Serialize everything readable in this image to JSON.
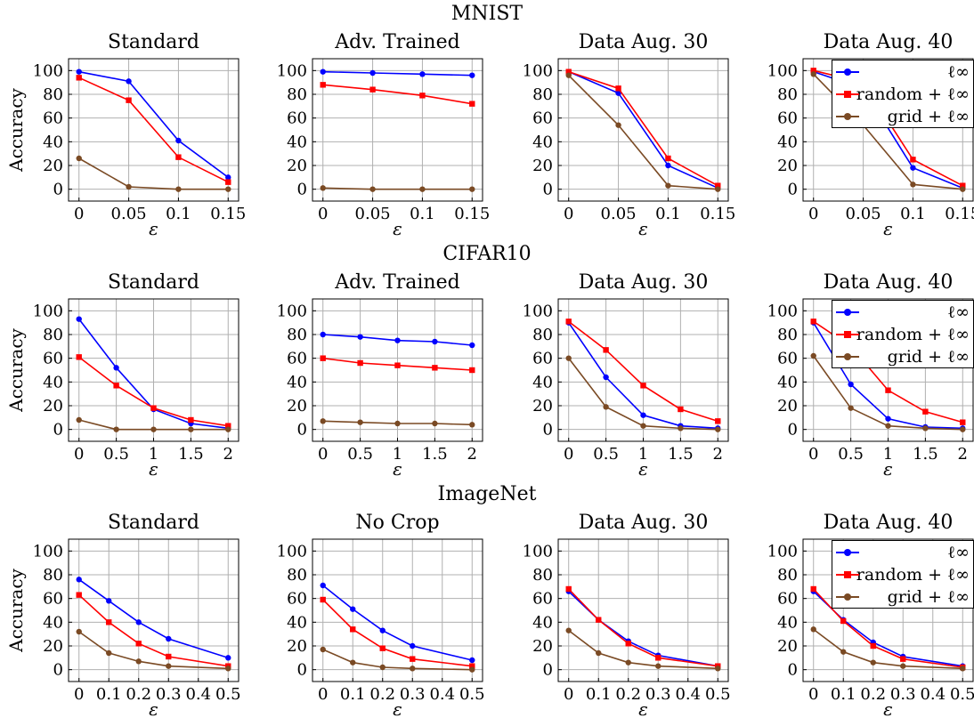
{
  "sections": [
    {
      "title": "MNIST",
      "panels": [
        {
          "title": "Standard"
        },
        {
          "title": "Adv. Trained"
        },
        {
          "title": "Data Aug. 30"
        },
        {
          "title": "Data Aug. 40",
          "legend": true
        }
      ]
    },
    {
      "title": "CIFAR10",
      "panels": [
        {
          "title": "Standard"
        },
        {
          "title": "Adv. Trained"
        },
        {
          "title": "Data Aug. 30"
        },
        {
          "title": "Data Aug. 40",
          "legend": true
        }
      ]
    },
    {
      "title": "ImageNet",
      "panels": [
        {
          "title": "Standard"
        },
        {
          "title": "No Crop"
        },
        {
          "title": "Data Aug. 30"
        },
        {
          "title": "Data Aug. 40",
          "legend": true
        }
      ]
    }
  ],
  "legend": {
    "items": [
      {
        "label": "ℓ∞",
        "color": "#0000ff",
        "marker": "circle"
      },
      {
        "label": "random + ℓ∞",
        "color": "#ff0000",
        "marker": "square"
      },
      {
        "label": "grid + ℓ∞",
        "color": "#7a4a24",
        "marker": "circle"
      }
    ]
  },
  "colors": {
    "linf": "#0000ff",
    "random": "#ff0000",
    "grid": "#7a4a24",
    "grid_lines": "#b0b0b0"
  },
  "chart_data": [
    {
      "type": "line",
      "section": "MNIST",
      "title": "Standard",
      "x": [
        0,
        0.05,
        0.1,
        0.15
      ],
      "x_ticks": [
        "0",
        "0.05",
        "0.1",
        "0.15"
      ],
      "xlabel": "ε",
      "ylabel": "Accuracy",
      "ylim": [
        -10,
        110
      ],
      "y_ticks": [
        0,
        20,
        40,
        60,
        80,
        100
      ],
      "grid": true,
      "series": [
        {
          "name": "ℓ∞",
          "values": [
            99,
            91,
            41,
            10
          ]
        },
        {
          "name": "random + ℓ∞",
          "values": [
            94,
            75,
            27,
            6
          ]
        },
        {
          "name": "grid + ℓ∞",
          "values": [
            26,
            2,
            0,
            0
          ]
        }
      ]
    },
    {
      "type": "line",
      "section": "MNIST",
      "title": "Adv. Trained",
      "x": [
        0,
        0.05,
        0.1,
        0.15
      ],
      "x_ticks": [
        "0",
        "0.05",
        "0.1",
        "0.15"
      ],
      "xlabel": "ε",
      "ylabel": "",
      "ylim": [
        -10,
        110
      ],
      "y_ticks": [
        0,
        20,
        40,
        60,
        80,
        100
      ],
      "grid": true,
      "series": [
        {
          "name": "ℓ∞",
          "values": [
            99,
            98,
            97,
            96
          ]
        },
        {
          "name": "random + ℓ∞",
          "values": [
            88,
            84,
            79,
            72
          ]
        },
        {
          "name": "grid + ℓ∞",
          "values": [
            1,
            0,
            0,
            0
          ]
        }
      ]
    },
    {
      "type": "line",
      "section": "MNIST",
      "title": "Data Aug. 30",
      "x": [
        0,
        0.05,
        0.1,
        0.15
      ],
      "x_ticks": [
        "0",
        "0.05",
        "0.1",
        "0.15"
      ],
      "xlabel": "ε",
      "ylabel": "",
      "ylim": [
        -10,
        110
      ],
      "y_ticks": [
        0,
        20,
        40,
        60,
        80,
        100
      ],
      "grid": true,
      "series": [
        {
          "name": "ℓ∞",
          "values": [
            99,
            81,
            20,
            1
          ]
        },
        {
          "name": "random + ℓ∞",
          "values": [
            99,
            85,
            26,
            3
          ]
        },
        {
          "name": "grid + ℓ∞",
          "values": [
            96,
            54,
            3,
            0
          ]
        }
      ]
    },
    {
      "type": "line",
      "section": "MNIST",
      "title": "Data Aug. 40",
      "x": [
        0,
        0.05,
        0.1,
        0.15
      ],
      "x_ticks": [
        "0",
        "0.05",
        "0.1",
        "0.15"
      ],
      "xlabel": "ε",
      "ylabel": "",
      "ylim": [
        -10,
        110
      ],
      "y_ticks": [
        0,
        20,
        40,
        60,
        80,
        100
      ],
      "grid": true,
      "legend": "top-right",
      "series": [
        {
          "name": "ℓ∞",
          "values": [
            99,
            85,
            18,
            1
          ]
        },
        {
          "name": "random + ℓ∞",
          "values": [
            100,
            90,
            25,
            3
          ]
        },
        {
          "name": "grid + ℓ∞",
          "values": [
            97,
            54,
            4,
            0
          ]
        }
      ]
    },
    {
      "type": "line",
      "section": "CIFAR10",
      "title": "Standard",
      "x": [
        0,
        0.5,
        1,
        1.5,
        2
      ],
      "x_ticks": [
        "0",
        "0.5",
        "1",
        "1.5",
        "2"
      ],
      "xlabel": "ε",
      "ylabel": "Accuracy",
      "ylim": [
        -10,
        110
      ],
      "y_ticks": [
        0,
        20,
        40,
        60,
        80,
        100
      ],
      "grid": true,
      "series": [
        {
          "name": "ℓ∞",
          "values": [
            93,
            52,
            17,
            5,
            1
          ]
        },
        {
          "name": "random + ℓ∞",
          "values": [
            61,
            37,
            18,
            8,
            3
          ]
        },
        {
          "name": "grid + ℓ∞",
          "values": [
            8,
            0,
            0,
            0,
            0
          ]
        }
      ]
    },
    {
      "type": "line",
      "section": "CIFAR10",
      "title": "Adv. Trained",
      "x": [
        0,
        0.5,
        1,
        1.5,
        2
      ],
      "x_ticks": [
        "0",
        "0.5",
        "1",
        "1.5",
        "2"
      ],
      "xlabel": "ε",
      "ylabel": "",
      "ylim": [
        -10,
        110
      ],
      "y_ticks": [
        0,
        20,
        40,
        60,
        80,
        100
      ],
      "grid": true,
      "series": [
        {
          "name": "ℓ∞",
          "values": [
            80,
            78,
            75,
            74,
            71
          ]
        },
        {
          "name": "random + ℓ∞",
          "values": [
            60,
            56,
            54,
            52,
            50
          ]
        },
        {
          "name": "grid + ℓ∞",
          "values": [
            7,
            6,
            5,
            5,
            4
          ]
        }
      ]
    },
    {
      "type": "line",
      "section": "CIFAR10",
      "title": "Data Aug. 30",
      "x": [
        0,
        0.5,
        1,
        1.5,
        2
      ],
      "x_ticks": [
        "0",
        "0.5",
        "1",
        "1.5",
        "2"
      ],
      "xlabel": "ε",
      "ylabel": "",
      "ylim": [
        -10,
        110
      ],
      "y_ticks": [
        0,
        20,
        40,
        60,
        80,
        100
      ],
      "grid": true,
      "series": [
        {
          "name": "ℓ∞",
          "values": [
            90,
            44,
            12,
            3,
            1
          ]
        },
        {
          "name": "random + ℓ∞",
          "values": [
            91,
            67,
            37,
            17,
            7
          ]
        },
        {
          "name": "grid + ℓ∞",
          "values": [
            60,
            19,
            3,
            1,
            0
          ]
        }
      ]
    },
    {
      "type": "line",
      "section": "CIFAR10",
      "title": "Data Aug. 40",
      "x": [
        0,
        0.5,
        1,
        1.5,
        2
      ],
      "x_ticks": [
        "0",
        "0.5",
        "1",
        "1.5",
        "2"
      ],
      "xlabel": "ε",
      "ylabel": "",
      "ylim": [
        -10,
        110
      ],
      "y_ticks": [
        0,
        20,
        40,
        60,
        80,
        100
      ],
      "grid": true,
      "legend": "top-right",
      "series": [
        {
          "name": "ℓ∞",
          "values": [
            90,
            38,
            9,
            2,
            1
          ]
        },
        {
          "name": "random + ℓ∞",
          "values": [
            91,
            70,
            33,
            15,
            6
          ]
        },
        {
          "name": "grid + ℓ∞",
          "values": [
            62,
            18,
            3,
            1,
            0
          ]
        }
      ]
    },
    {
      "type": "line",
      "section": "ImageNet",
      "title": "Standard",
      "x": [
        0,
        0.1,
        0.2,
        0.3,
        0.5
      ],
      "x_ticks": [
        "0",
        "0.1",
        "0.2",
        "0.3",
        "0.4",
        "0.5"
      ],
      "x_tick_values": [
        0,
        0.1,
        0.2,
        0.3,
        0.4,
        0.5
      ],
      "xlabel": "ε",
      "ylabel": "Accuracy",
      "ylim": [
        -10,
        110
      ],
      "y_ticks": [
        0,
        20,
        40,
        60,
        80,
        100
      ],
      "grid": true,
      "series": [
        {
          "name": "ℓ∞",
          "values": [
            76,
            58,
            40,
            26,
            10
          ]
        },
        {
          "name": "random + ℓ∞",
          "values": [
            63,
            40,
            22,
            11,
            3
          ]
        },
        {
          "name": "grid + ℓ∞",
          "values": [
            32,
            14,
            7,
            3,
            1
          ]
        }
      ]
    },
    {
      "type": "line",
      "section": "ImageNet",
      "title": "No Crop",
      "x": [
        0,
        0.1,
        0.2,
        0.3,
        0.5
      ],
      "x_ticks": [
        "0",
        "0.1",
        "0.2",
        "0.3",
        "0.4",
        "0.5"
      ],
      "x_tick_values": [
        0,
        0.1,
        0.2,
        0.3,
        0.4,
        0.5
      ],
      "xlabel": "ε",
      "ylabel": "",
      "ylim": [
        -10,
        110
      ],
      "y_ticks": [
        0,
        20,
        40,
        60,
        80,
        100
      ],
      "grid": true,
      "series": [
        {
          "name": "ℓ∞",
          "values": [
            71,
            51,
            33,
            20,
            8
          ]
        },
        {
          "name": "random + ℓ∞",
          "values": [
            59,
            34,
            18,
            9,
            3
          ]
        },
        {
          "name": "grid + ℓ∞",
          "values": [
            17,
            6,
            2,
            1,
            0
          ]
        }
      ]
    },
    {
      "type": "line",
      "section": "ImageNet",
      "title": "Data Aug. 30",
      "x": [
        0,
        0.1,
        0.2,
        0.3,
        0.5
      ],
      "x_ticks": [
        "0",
        "0.1",
        "0.2",
        "0.3",
        "0.4",
        "0.5"
      ],
      "x_tick_values": [
        0,
        0.1,
        0.2,
        0.3,
        0.4,
        0.5
      ],
      "xlabel": "ε",
      "ylabel": "",
      "ylim": [
        -10,
        110
      ],
      "y_ticks": [
        0,
        20,
        40,
        60,
        80,
        100
      ],
      "grid": true,
      "series": [
        {
          "name": "ℓ∞",
          "values": [
            66,
            42,
            24,
            12,
            3
          ]
        },
        {
          "name": "random + ℓ∞",
          "values": [
            68,
            42,
            22,
            10,
            3
          ]
        },
        {
          "name": "grid + ℓ∞",
          "values": [
            33,
            14,
            6,
            3,
            1
          ]
        }
      ]
    },
    {
      "type": "line",
      "section": "ImageNet",
      "title": "Data Aug. 40",
      "x": [
        0,
        0.1,
        0.2,
        0.3,
        0.5
      ],
      "x_ticks": [
        "0",
        "0.1",
        "0.2",
        "0.3",
        "0.4",
        "0.5"
      ],
      "x_tick_values": [
        0,
        0.1,
        0.2,
        0.3,
        0.4,
        0.5
      ],
      "xlabel": "ε",
      "ylabel": "",
      "ylim": [
        -10,
        110
      ],
      "y_ticks": [
        0,
        20,
        40,
        60,
        80,
        100
      ],
      "grid": true,
      "legend": "top-right",
      "series": [
        {
          "name": "ℓ∞",
          "values": [
            66,
            42,
            23,
            11,
            3
          ]
        },
        {
          "name": "random + ℓ∞",
          "values": [
            68,
            41,
            20,
            9,
            2
          ]
        },
        {
          "name": "grid + ℓ∞",
          "values": [
            34,
            15,
            6,
            3,
            1
          ]
        }
      ]
    }
  ]
}
